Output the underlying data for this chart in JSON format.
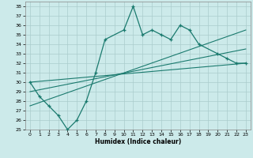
{
  "xlabel": "Humidex (Indice chaleur)",
  "bg_color": "#cceaea",
  "line_color": "#1a7a6e",
  "grid_color": "#aacccc",
  "x_data": [
    0,
    1,
    2,
    3,
    4,
    5,
    6,
    7,
    8,
    10,
    11,
    12,
    13,
    14,
    15,
    16,
    17,
    18,
    20,
    21,
    22,
    23
  ],
  "y_main": [
    30,
    28.5,
    27.5,
    26.5,
    25.0,
    26.0,
    28.0,
    31.0,
    34.5,
    35.5,
    38.0,
    35.0,
    35.5,
    35.0,
    34.5,
    36.0,
    35.5,
    34.0,
    33.0,
    32.5,
    32.0,
    32.0
  ],
  "regression_lines": [
    {
      "x": [
        0,
        23
      ],
      "y": [
        30.0,
        32.0
      ]
    },
    {
      "x": [
        0,
        23
      ],
      "y": [
        29.0,
        33.5
      ]
    },
    {
      "x": [
        0,
        23
      ],
      "y": [
        27.5,
        35.5
      ]
    }
  ],
  "ylim": [
    25,
    38.5
  ],
  "xlim": [
    -0.5,
    23.5
  ],
  "yticks": [
    25,
    26,
    27,
    28,
    29,
    30,
    31,
    32,
    33,
    34,
    35,
    36,
    37,
    38
  ],
  "xticks": [
    0,
    1,
    2,
    3,
    4,
    5,
    6,
    7,
    8,
    9,
    10,
    11,
    12,
    13,
    14,
    15,
    16,
    17,
    18,
    19,
    20,
    21,
    22,
    23
  ]
}
